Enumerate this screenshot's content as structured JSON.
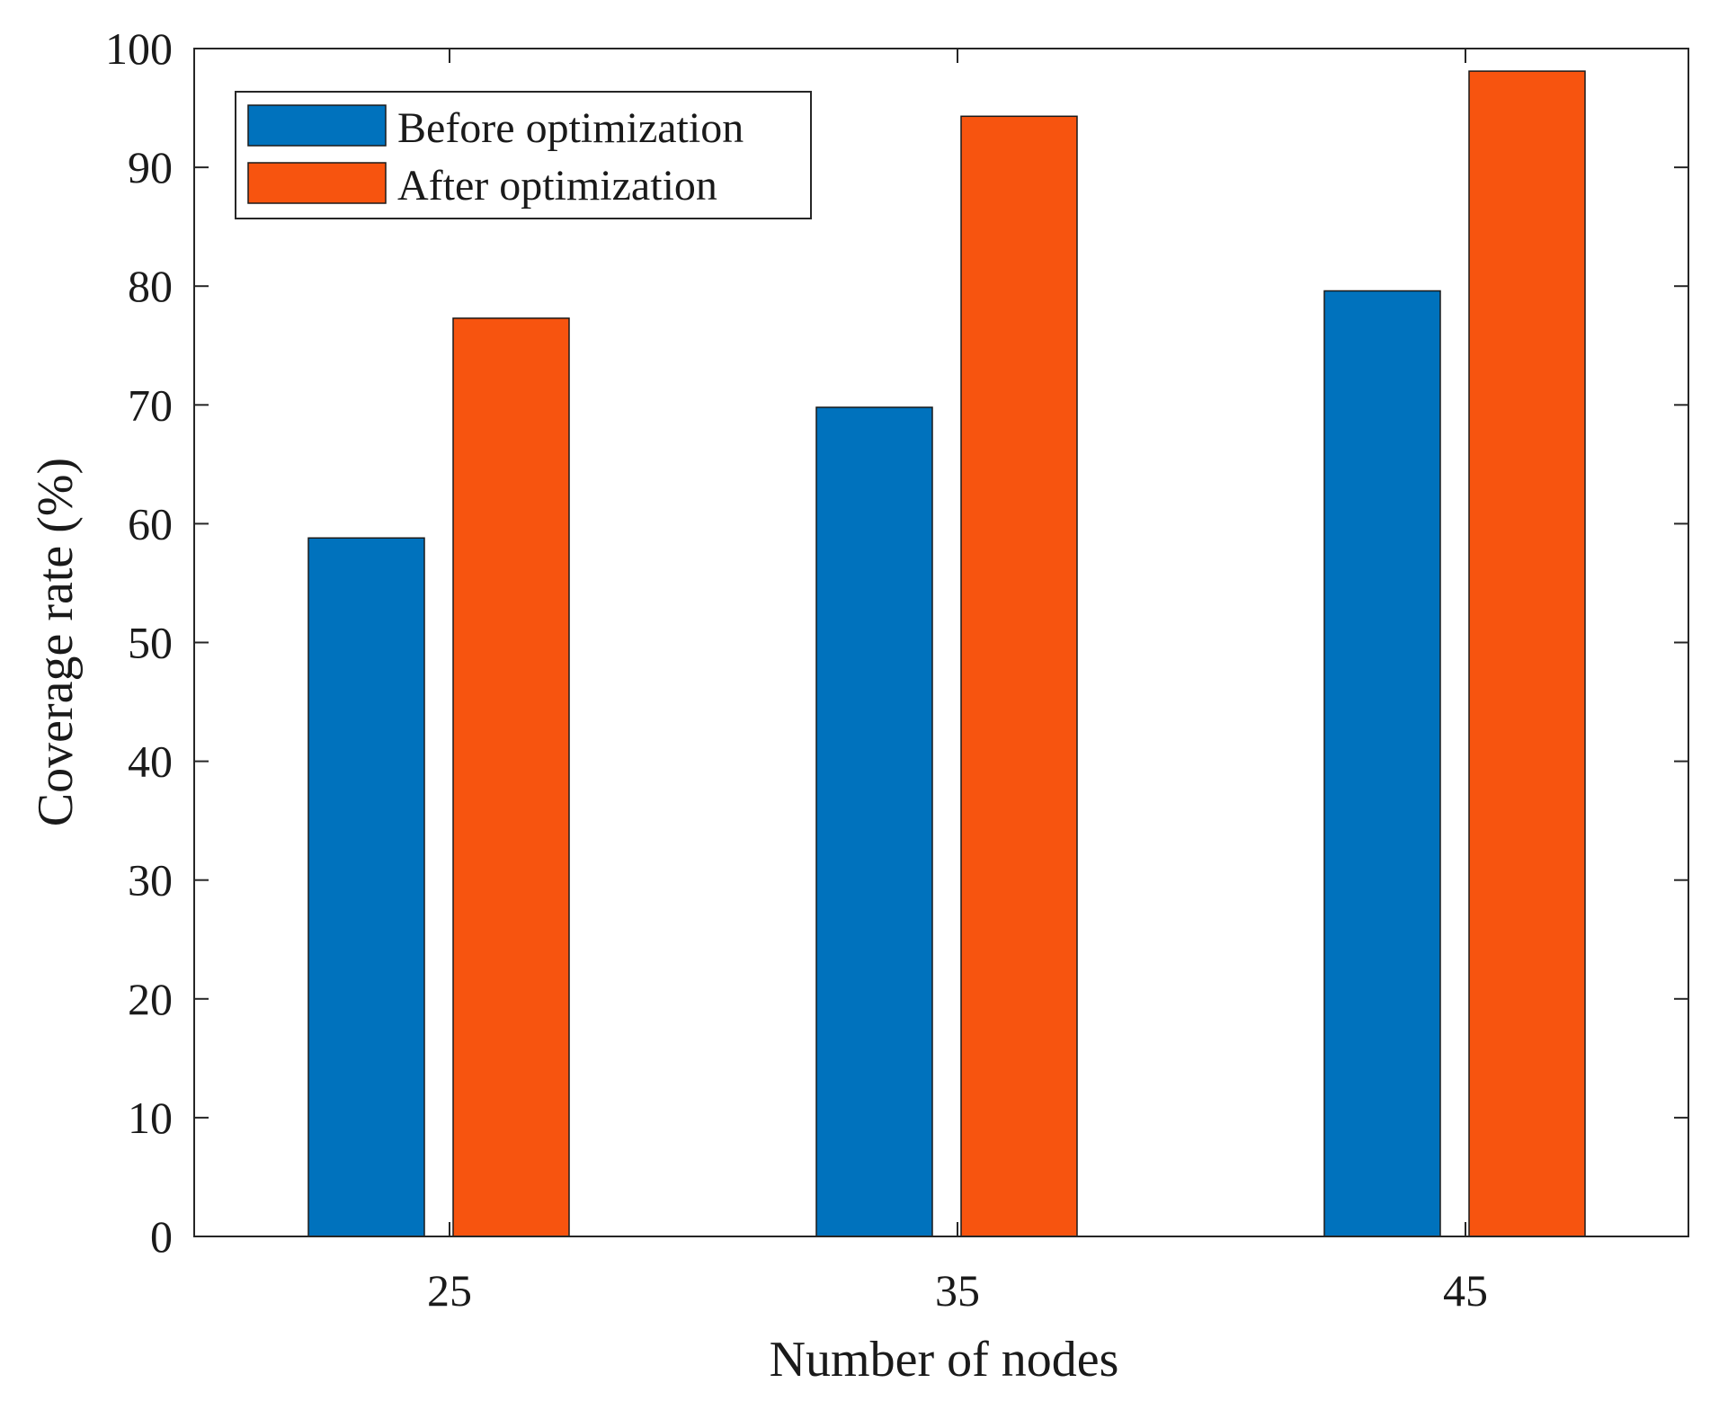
{
  "chart_data": {
    "type": "bar",
    "title": "",
    "xlabel": "Number of nodes",
    "ylabel": "Coverage rate (%)",
    "categories": [
      "25",
      "35",
      "45"
    ],
    "ylim": [
      0,
      100
    ],
    "yticks": [
      "0",
      "10",
      "20",
      "30",
      "40",
      "50",
      "60",
      "70",
      "80",
      "90",
      "100"
    ],
    "grid": false,
    "legend_position": "top-left",
    "series": [
      {
        "name": "Before optimization",
        "color": "#0072BD",
        "values": [
          58.8,
          69.8,
          79.6
        ]
      },
      {
        "name": "After optimization",
        "color": "#F7540F",
        "values": [
          77.3,
          94.3,
          98.1
        ]
      }
    ]
  }
}
